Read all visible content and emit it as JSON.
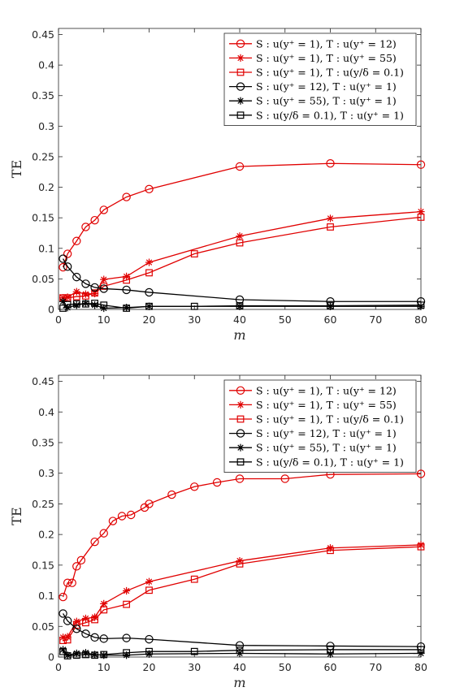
{
  "chart_data": [
    {
      "type": "line",
      "xlabel": "m",
      "ylabel": "TE",
      "xlim": [
        0,
        80
      ],
      "ylim": [
        0,
        0.46
      ],
      "xticks": [
        "0",
        "10",
        "20",
        "30",
        "40",
        "50",
        "60",
        "70",
        "80"
      ],
      "yticks": [
        "0",
        "0.05",
        "0.1",
        "0.15",
        "0.2",
        "0.25",
        "0.3",
        "0.35",
        "0.4",
        "0.45"
      ],
      "grid": false,
      "legend_position": "top-right",
      "series": [
        {
          "name": "S : u(y⁺ = 1),  T : u(y⁺ = 12)",
          "color": "#e00000",
          "marker": "circle",
          "x": [
            1,
            2,
            4,
            6,
            8,
            10,
            15,
            20,
            40,
            60,
            80
          ],
          "y": [
            0.069,
            0.091,
            0.112,
            0.135,
            0.146,
            0.163,
            0.184,
            0.197,
            0.234,
            0.239,
            0.237
          ]
        },
        {
          "name": "S : u(y⁺ = 1),  T : u(y⁺ = 55)",
          "color": "#e00000",
          "marker": "star",
          "x": [
            1,
            2,
            4,
            6,
            8,
            10,
            15,
            20,
            40,
            60,
            80
          ],
          "y": [
            0.019,
            0.02,
            0.029,
            0.025,
            0.026,
            0.049,
            0.054,
            0.077,
            0.12,
            0.149,
            0.16
          ]
        },
        {
          "name": "S : u(y⁺ = 1),  T : u(y/δ = 0.1)",
          "color": "#e00000",
          "marker": "square",
          "x": [
            1,
            2,
            4,
            6,
            8,
            10,
            15,
            20,
            30,
            40,
            60,
            80
          ],
          "y": [
            0.019,
            0.019,
            0.021,
            0.022,
            0.027,
            0.038,
            0.048,
            0.06,
            0.091,
            0.109,
            0.135,
            0.151
          ]
        },
        {
          "name": "S : u(y⁺ = 12),  T : u(y⁺ = 1)",
          "color": "#000000",
          "marker": "circle",
          "x": [
            1,
            2,
            4,
            6,
            8,
            10,
            15,
            20,
            40,
            60,
            80
          ],
          "y": [
            0.083,
            0.07,
            0.053,
            0.042,
            0.036,
            0.034,
            0.032,
            0.028,
            0.016,
            0.013,
            0.013
          ]
        },
        {
          "name": "S : u(y⁺ = 55),  T : u(y⁺ = 1)",
          "color": "#000000",
          "marker": "star",
          "x": [
            1,
            2,
            4,
            6,
            8,
            10,
            15,
            20,
            40,
            60,
            80
          ],
          "y": [
            0.013,
            0.003,
            0.007,
            0.01,
            0.007,
            0.002,
            0.003,
            0.005,
            0.005,
            0.005,
            0.005
          ]
        },
        {
          "name": "S : u(y/δ = 0.1),  T : u(y⁺ = 1)",
          "color": "#000000",
          "marker": "square",
          "x": [
            1,
            2,
            4,
            6,
            8,
            10,
            15,
            20,
            30,
            40,
            60,
            80
          ],
          "y": [
            0.002,
            0.008,
            0.009,
            0.009,
            0.01,
            0.007,
            0.002,
            0.005,
            0.005,
            0.006,
            0.006,
            0.007
          ]
        }
      ]
    },
    {
      "type": "line",
      "xlabel": "m",
      "ylabel": "TE",
      "xlim": [
        0,
        80
      ],
      "ylim": [
        0,
        0.46
      ],
      "xticks": [
        "0",
        "10",
        "20",
        "30",
        "40",
        "50",
        "60",
        "70",
        "80"
      ],
      "yticks": [
        "0",
        "0.05",
        "0.1",
        "0.15",
        "0.2",
        "0.25",
        "0.3",
        "0.35",
        "0.4",
        "0.45"
      ],
      "grid": false,
      "legend_position": "top-right",
      "series": [
        {
          "name": "S : u(y⁺ = 1),  T : u(y⁺ = 12)",
          "color": "#e00000",
          "marker": "circle",
          "x": [
            1,
            2,
            3,
            4,
            5,
            8,
            10,
            12,
            14,
            16,
            19,
            20,
            25,
            30,
            35,
            40,
            50,
            60,
            80
          ],
          "y": [
            0.098,
            0.121,
            0.121,
            0.148,
            0.158,
            0.188,
            0.202,
            0.222,
            0.23,
            0.232,
            0.244,
            0.25,
            0.265,
            0.278,
            0.285,
            0.291,
            0.291,
            0.298,
            0.299
          ]
        },
        {
          "name": "S : u(y⁺ = 1),  T : u(y⁺ = 55)",
          "color": "#e00000",
          "marker": "star",
          "x": [
            1,
            2,
            4,
            6,
            8,
            10,
            15,
            20,
            40,
            60,
            80
          ],
          "y": [
            0.032,
            0.033,
            0.058,
            0.063,
            0.065,
            0.087,
            0.108,
            0.123,
            0.157,
            0.178,
            0.183
          ]
        },
        {
          "name": "S : u(y⁺ = 1),  T : u(y/δ = 0.1)",
          "color": "#e00000",
          "marker": "square",
          "x": [
            1,
            2,
            4,
            6,
            8,
            10,
            15,
            20,
            30,
            40,
            60,
            80
          ],
          "y": [
            0.027,
            0.028,
            0.052,
            0.056,
            0.061,
            0.077,
            0.086,
            0.109,
            0.127,
            0.152,
            0.174,
            0.18
          ]
        },
        {
          "name": "S : u(y⁺ = 12),  T : u(y⁺ = 1)",
          "color": "#000000",
          "marker": "circle",
          "x": [
            1,
            2,
            4,
            6,
            8,
            10,
            15,
            20,
            40,
            60,
            80
          ],
          "y": [
            0.071,
            0.059,
            0.046,
            0.038,
            0.032,
            0.03,
            0.031,
            0.029,
            0.019,
            0.018,
            0.017
          ]
        },
        {
          "name": "S : u(y⁺ = 55),  T : u(y⁺ = 1)",
          "color": "#000000",
          "marker": "star",
          "x": [
            1,
            2,
            4,
            6,
            8,
            10,
            15,
            20,
            40,
            60,
            80
          ],
          "y": [
            0.012,
            0.003,
            0.006,
            0.007,
            0.004,
            0.003,
            0.003,
            0.005,
            0.006,
            0.005,
            0.006
          ]
        },
        {
          "name": "S : u(y/δ = 0.1),  T : u(y⁺ = 1)",
          "color": "#000000",
          "marker": "square",
          "x": [
            1,
            2,
            4,
            6,
            8,
            10,
            15,
            20,
            30,
            40,
            60,
            80
          ],
          "y": [
            0.009,
            0.002,
            0.003,
            0.004,
            0.003,
            0.004,
            0.007,
            0.009,
            0.009,
            0.011,
            0.012,
            0.012
          ]
        }
      ]
    }
  ]
}
